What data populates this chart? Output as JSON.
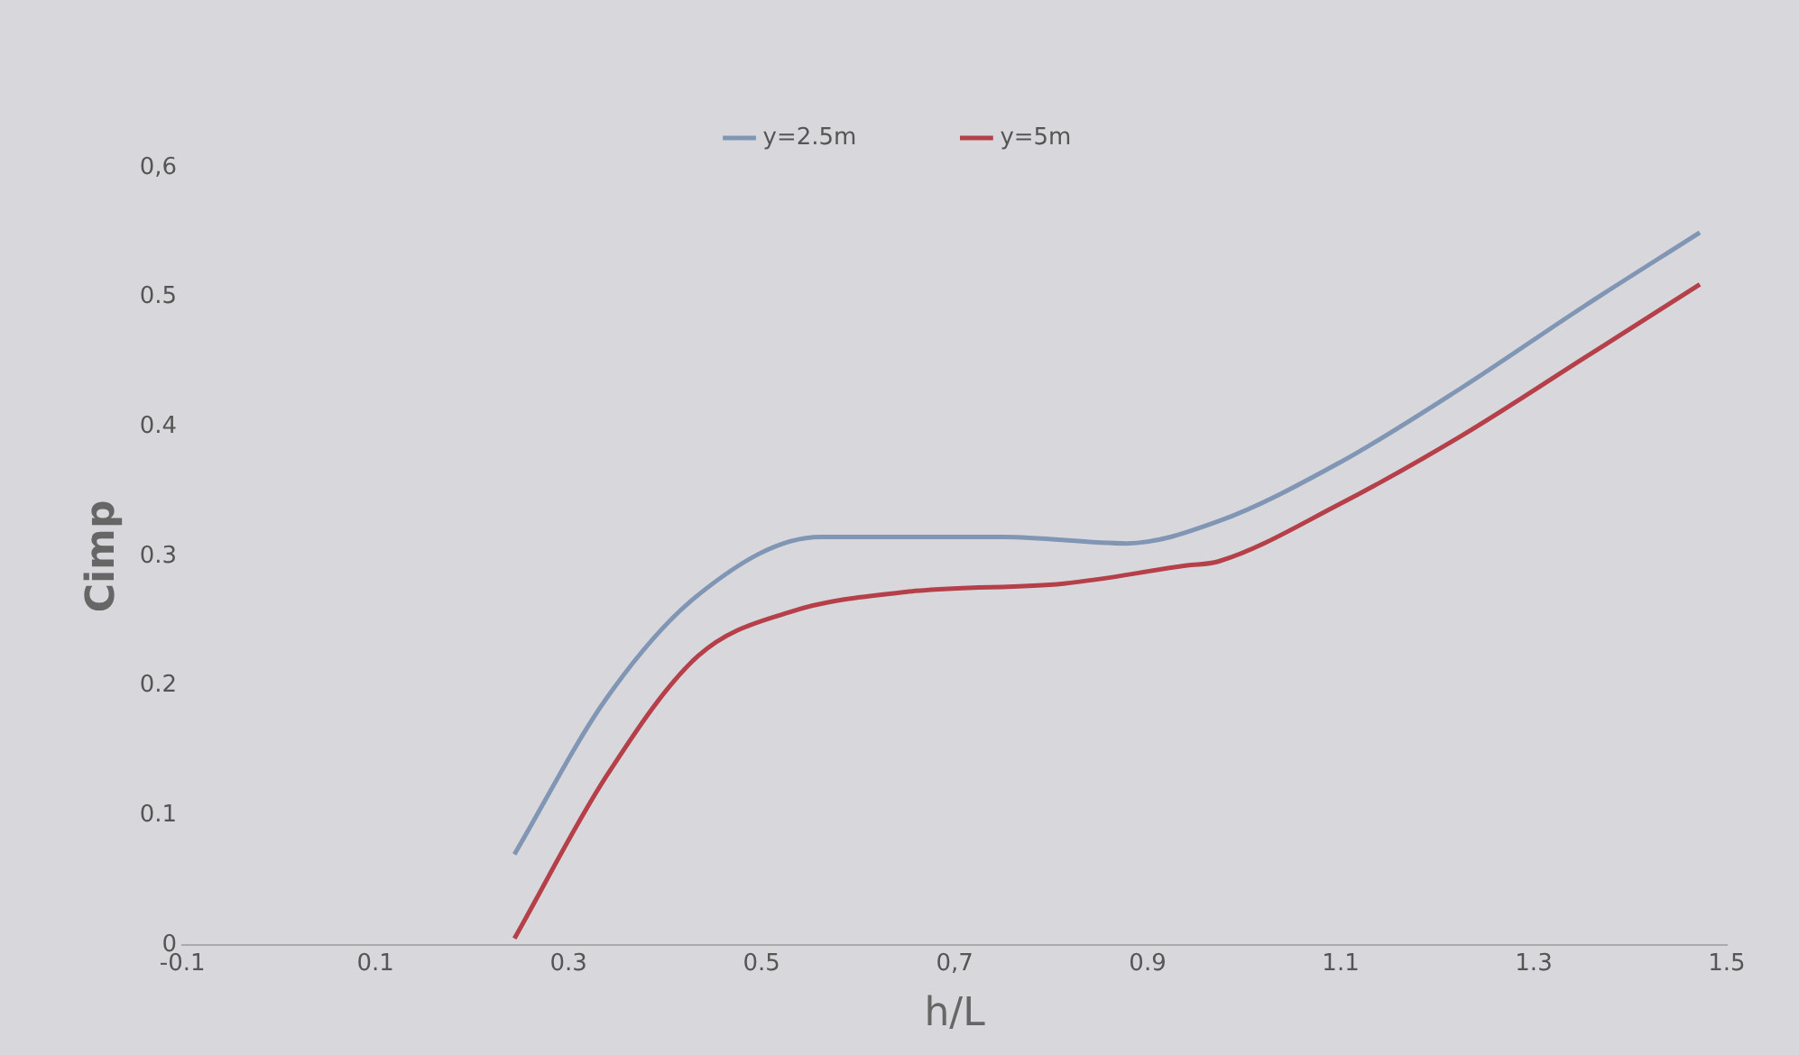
{
  "chart_data": {
    "type": "line",
    "xlabel": "h/L",
    "ylabel": "Cimp",
    "xlim": [
      -0.1,
      1.5
    ],
    "xticks": [
      -0.1,
      0.1,
      0.3,
      0.5,
      {
        "value": 0.7,
        "label": "0,7"
      },
      0.9,
      1.1,
      1.3,
      1.5
    ],
    "ylim": [
      0,
      0.6
    ],
    "yticks": [
      0,
      0.1,
      0.2,
      0.3,
      0.4,
      0.5,
      {
        "value": 0.6,
        "label": "0,6"
      }
    ],
    "grid": false,
    "legend": "top",
    "marker": "none",
    "line_style": "solid",
    "series": [
      {
        "name": "y=2.5m",
        "color": "#8096b4",
        "x": [
          0.244,
          0.339,
          0.434,
          0.561,
          0.751,
          0.878,
          0.973,
          1.098,
          1.225,
          1.352,
          1.472
        ],
        "values": [
          0.07,
          0.19,
          0.27,
          0.315,
          0.315,
          0.31,
          0.327,
          0.372,
          0.43,
          0.493,
          0.55
        ]
      },
      {
        "name": "y=5m",
        "color": "#b5404a",
        "x": [
          0.244,
          0.339,
          0.434,
          0.529,
          0.656,
          0.813,
          0.941,
          0.973,
          1.098,
          1.225,
          1.352,
          1.472
        ],
        "values": [
          0.005,
          0.13,
          0.223,
          0.257,
          0.273,
          0.279,
          0.293,
          0.296,
          0.34,
          0.393,
          0.453,
          0.51
        ]
      }
    ]
  }
}
